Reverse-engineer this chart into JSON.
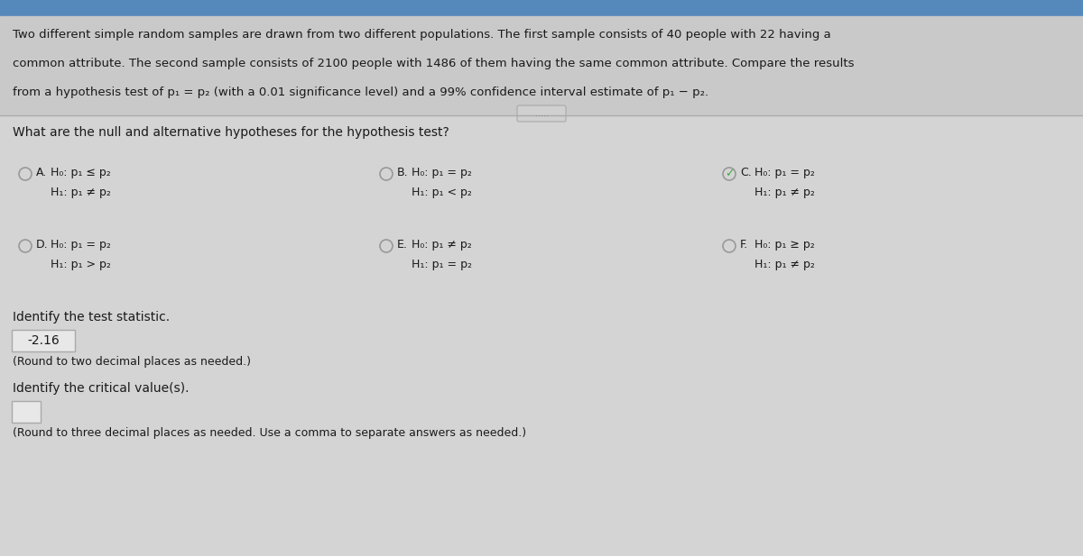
{
  "bg_color": "#c8c8c8",
  "panel_color": "#d8d8d8",
  "text_color": "#1a1a1a",
  "header_bg": "#c0c0c0",
  "header_text": [
    "Two different simple random samples are drawn from two different populations. The first sample consists of 40 people with 22 having a",
    "common attribute. The second sample consists of 2100 people with 1486 of them having the same common attribute. Compare the results",
    "from a hypothesis test of p₁ = p₂ (with a 0.01 significance level) and a 99% confidence interval estimate of p₁ − p₂."
  ],
  "divider_dots": ".....",
  "question": "What are the null and alternative hypotheses for the hypothesis test?",
  "options": [
    {
      "label": "A.",
      "h0": "H₀: p₁ ≤ p₂",
      "h1": "H₁: p₁ ≠ p₂",
      "selected": false,
      "col": 0,
      "row": 0
    },
    {
      "label": "B.",
      "h0": "H₀: p₁ = p₂",
      "h1": "H₁: p₁ < p₂",
      "selected": false,
      "col": 1,
      "row": 0
    },
    {
      "label": "C.",
      "h0": "H₀: p₁ = p₂",
      "h1": "H₁: p₁ ≠ p₂",
      "selected": true,
      "col": 2,
      "row": 0
    },
    {
      "label": "D.",
      "h0": "H₀: p₁ = p₂",
      "h1": "H₁: p₁ > p₂",
      "selected": false,
      "col": 0,
      "row": 1
    },
    {
      "label": "E.",
      "h0": "H₀: p₁ ≠ p₂",
      "h1": "H₁: p₁ = p₂",
      "selected": false,
      "col": 1,
      "row": 1
    },
    {
      "label": "F.",
      "h0": "H₀: p₁ ≥ p₂",
      "h1": "H₁: p₁ ≠ p₂",
      "selected": false,
      "col": 2,
      "row": 1
    }
  ],
  "test_statistic_label": "Identify the test statistic.",
  "test_statistic_value": "-2.16",
  "test_statistic_note": "(Round to two decimal places as needed.)",
  "critical_label": "Identify the critical value(s).",
  "critical_note": "(Round to three decimal places as needed. Use a comma to separate answers as needed.)",
  "checkmark_color": "#44aa44",
  "box_bg": "#e8e8e8",
  "box_border": "#aaaaaa",
  "circle_color": "#999999",
  "divider_color": "#aaaaaa",
  "dots_color": "#888888",
  "header_top_bar": "#5588bb"
}
